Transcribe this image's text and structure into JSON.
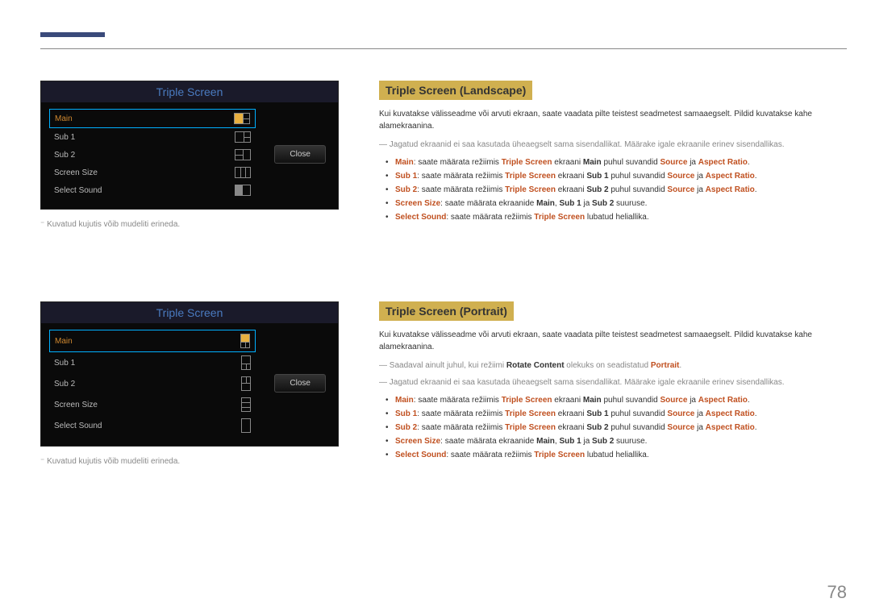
{
  "page_number": "78",
  "caption_note": "Kuvatud kujutis võib mudeliti erineda.",
  "osd": {
    "title": "Triple Screen",
    "close": "Close",
    "items": {
      "main": "Main",
      "sub1": "Sub 1",
      "sub2": "Sub 2",
      "screensize": "Screen Size",
      "selectsound": "Select Sound"
    }
  },
  "landscape": {
    "heading": "Triple Screen (Landscape)",
    "intro": "Kui kuvatakse välisseadme või arvuti ekraan, saate vaadata pilte teistest seadmetest samaaegselt. Pildid kuvatakse kahe alamekraanina.",
    "note": "Jagatud ekraanid ei saa kasutada üheaegselt sama sisendallikat. Määrake igale ekraanile erinev sisendallikas.",
    "bullets": {
      "b1": {
        "lead": "Main",
        "t1": ": saate määrata režiimis ",
        "h1": "Triple Screen",
        "t2": " ekraani ",
        "h2": "Main",
        "t3": " puhul suvandid ",
        "h3": "Source",
        "t4": " ja ",
        "h4": "Aspect Ratio",
        "t5": "."
      },
      "b2": {
        "lead": "Sub 1",
        "t1": ": saate määrata režiimis ",
        "h1": "Triple Screen",
        "t2": " ekraani ",
        "h2": "Sub 1",
        "t3": " puhul suvandid ",
        "h3": "Source",
        "t4": " ja ",
        "h4": "Aspect Ratio",
        "t5": "."
      },
      "b3": {
        "lead": "Sub 2",
        "t1": ": saate määrata režiimis ",
        "h1": "Triple Screen",
        "t2": " ekraani ",
        "h2": "Sub 2",
        "t3": " puhul suvandid ",
        "h3": "Source",
        "t4": " ja ",
        "h4": "Aspect Ratio",
        "t5": "."
      },
      "b4": {
        "lead": "Screen Size",
        "t1": ": saate määrata ekraanide ",
        "h1": "Main",
        "t2": ", ",
        "h2": "Sub 1",
        "t3": " ja ",
        "h3": "Sub 2",
        "t4": " suuruse."
      },
      "b5": {
        "lead": "Select Sound",
        "t1": ": saate määrata režiimis ",
        "h1": "Triple Screen",
        "t2": " lubatud heliallika."
      }
    }
  },
  "portrait": {
    "heading": "Triple Screen (Portrait)",
    "intro": "Kui kuvatakse välisseadme või arvuti ekraan, saate vaadata pilte teistest seadmetest samaaegselt. Pildid kuvatakse kahe alamekraanina.",
    "note1": {
      "t1": "Saadaval ainult juhul, kui režiimi ",
      "h1": "Rotate Content",
      "t2": " olekuks on seadistatud ",
      "h2": "Portrait",
      "t3": "."
    },
    "note2": "Jagatud ekraanid ei saa kasutada üheaegselt sama sisendallikat. Määrake igale ekraanile erinev sisendallikas.",
    "bullets": {
      "b1": {
        "lead": "Main",
        "t1": ": saate määrata režiimis ",
        "h1": "Triple Screen",
        "t2": " ekraani ",
        "h2": "Main",
        "t3": " puhul suvandid ",
        "h3": "Source",
        "t4": " ja ",
        "h4": "Aspect Ratio",
        "t5": "."
      },
      "b2": {
        "lead": "Sub 1",
        "t1": ": saate määrata režiimis ",
        "h1": "Triple Screen",
        "t2": " ekraani ",
        "h2": "Sub 1",
        "t3": " puhul suvandid ",
        "h3": "Source",
        "t4": " ja ",
        "h4": "Aspect Ratio",
        "t5": "."
      },
      "b3": {
        "lead": "Sub 2",
        "t1": ": saate määrata režiimis ",
        "h1": "Triple Screen",
        "t2": " ekraani ",
        "h2": "Sub 2",
        "t3": " puhul suvandid ",
        "h3": "Source",
        "t4": " ja ",
        "h4": "Aspect Ratio",
        "t5": "."
      },
      "b4": {
        "lead": "Screen Size",
        "t1": ": saate määrata ekraanide ",
        "h1": "Main",
        "t2": ", ",
        "h2": "Sub 1",
        "t3": " ja ",
        "h3": "Sub 2",
        "t4": " suuruse."
      },
      "b5": {
        "lead": "Select Sound",
        "t1": ": saate määrata režiimis ",
        "h1": "Triple Screen",
        "t2": " lubatud heliallika."
      }
    }
  }
}
